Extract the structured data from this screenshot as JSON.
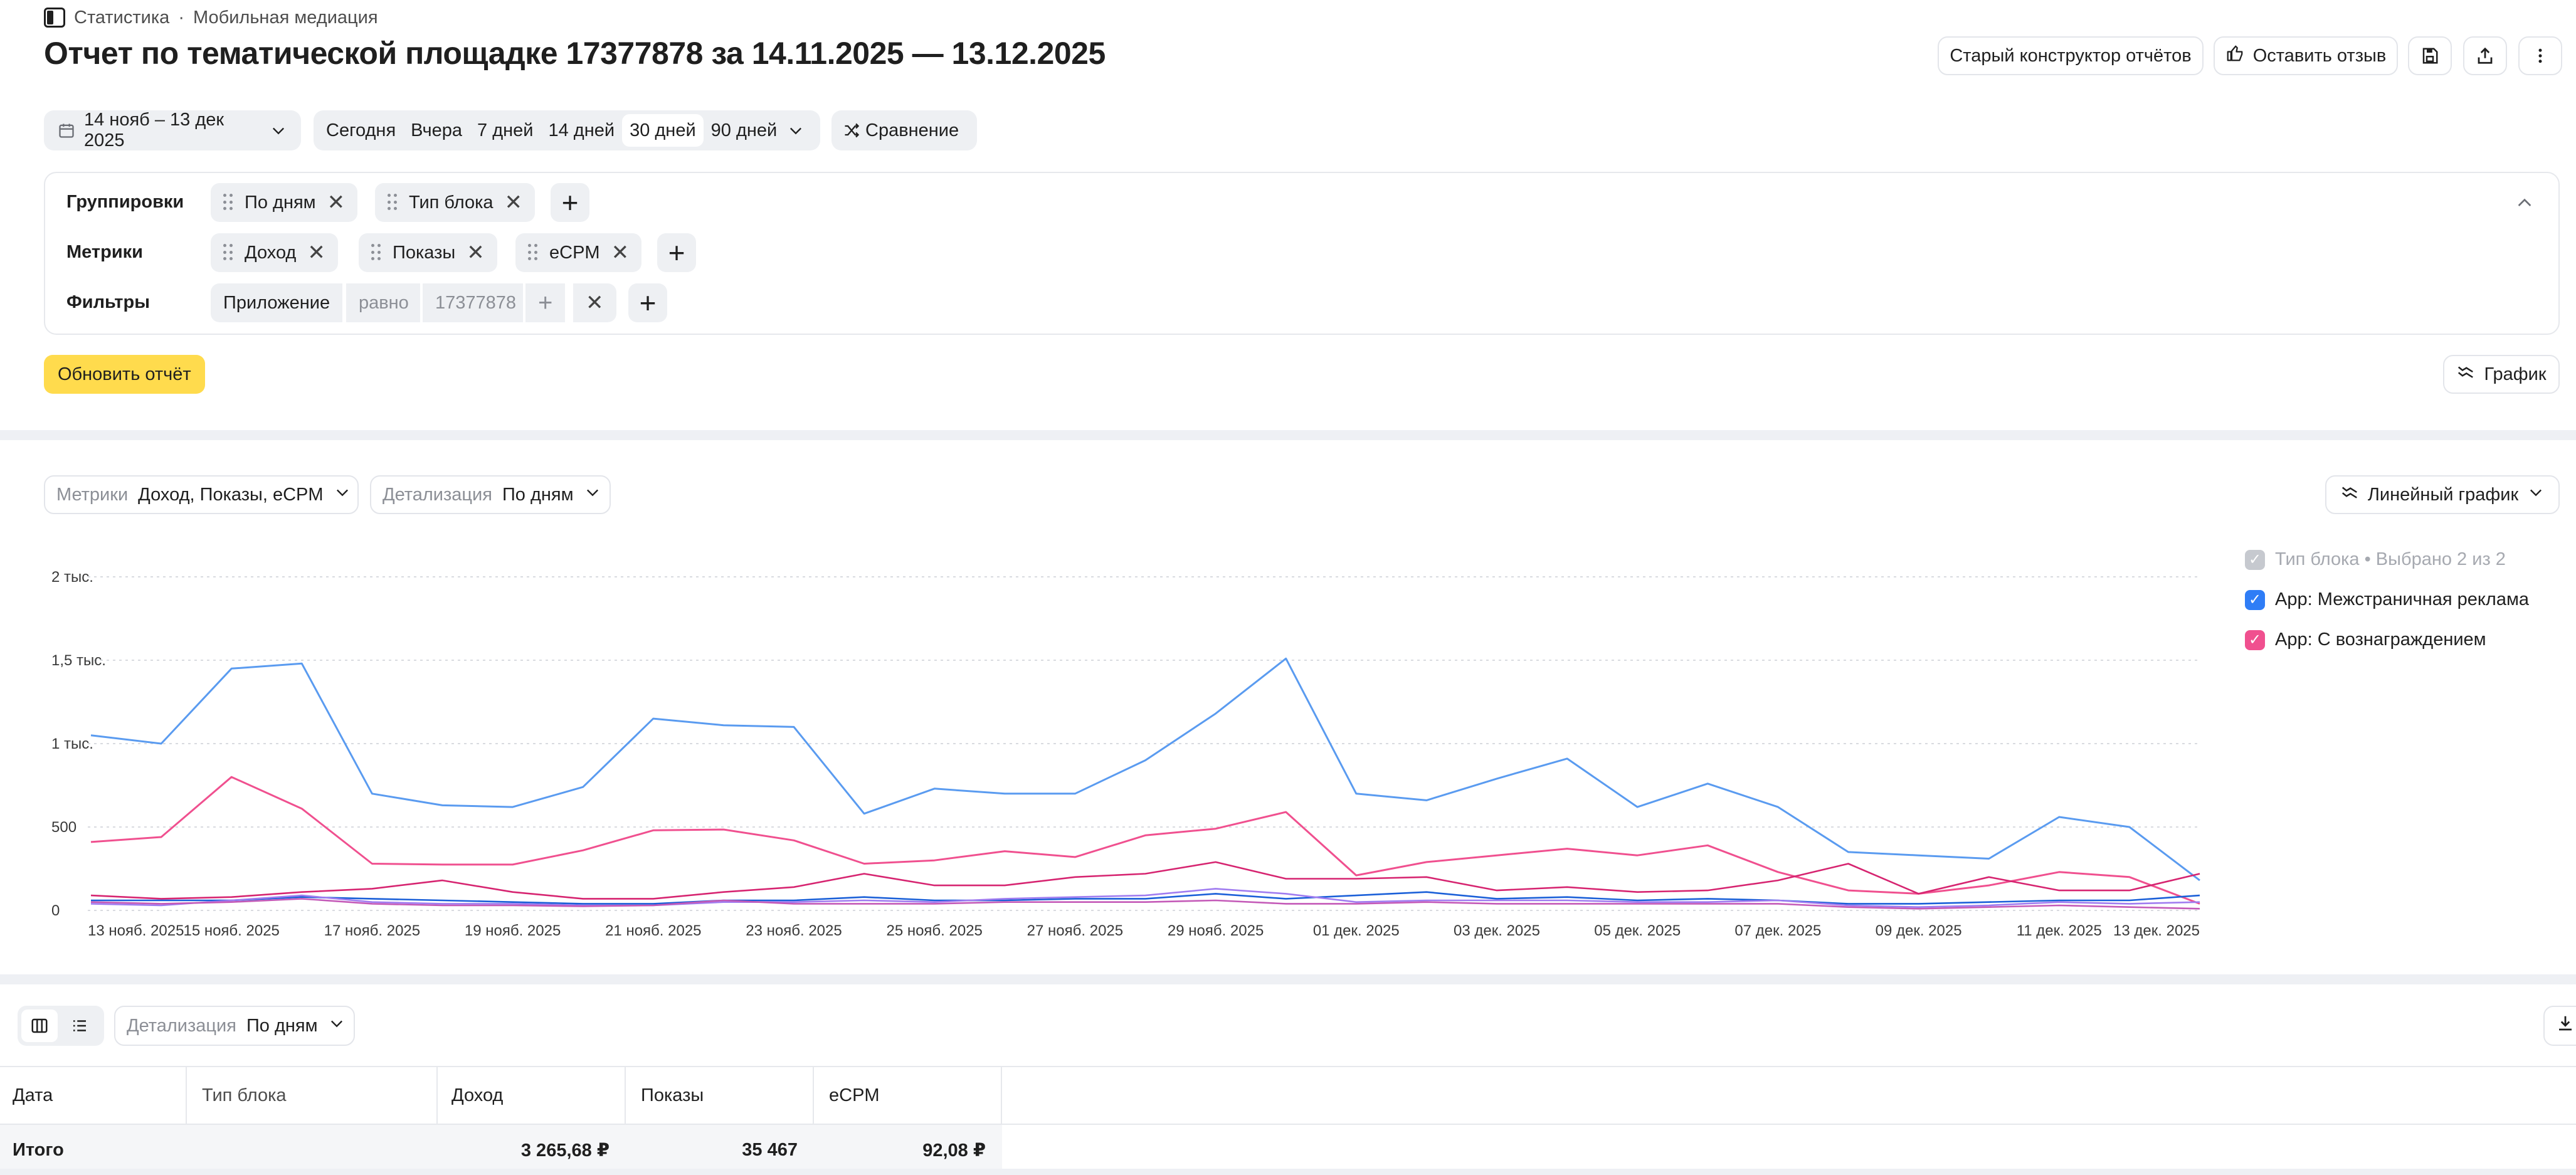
{
  "breadcrumb": {
    "part1": "Статистика",
    "sep": "·",
    "part2": "Мобильная медиация"
  },
  "page_title": "Отчет по тематической площадке 17377878 за 14.11.2025 — 13.12.2025",
  "header_actions": {
    "old_builder": "Старый конструктор отчётов",
    "feedback": "Оставить отзыв"
  },
  "date_range": "14 нояб – 13 дек 2025",
  "periods": [
    "Сегодня",
    "Вчера",
    "7 дней",
    "14 дней",
    "30 дней",
    "90 дней"
  ],
  "active_period": "30 дней",
  "comparison": "Сравнение",
  "groupings": {
    "label": "Группировки",
    "items": [
      "По дням",
      "Тип блока"
    ]
  },
  "metrics": {
    "label": "Метрики",
    "items": [
      "Доход",
      "Показы",
      "eCPM"
    ]
  },
  "filters": {
    "label": "Фильтры",
    "field": "Приложение",
    "op": "равно",
    "value": "17377878"
  },
  "update_button": "Обновить отчёт",
  "chart_toggle": "График",
  "chart_controls": {
    "metrics_label": "Метрики",
    "metrics_value": "Доход, Показы, eCPM",
    "detail_label": "Детализация",
    "detail_value": "По дням",
    "chart_type": "Линейный график"
  },
  "legend": {
    "header": "Тип блока • Выбрано 2 из 2",
    "items": [
      "App: Межстраничная реклама",
      "App: С вознаграждением"
    ]
  },
  "colors": {
    "blue": "#5a9bf0",
    "pink": "#f0508f",
    "purple": "#9a6ff0",
    "accent_yellow": "#ffdb4d",
    "dark_blue": "#1a5fd8",
    "dark_pink": "#d62470"
  },
  "chart_data": {
    "type": "line",
    "y_ticks": [
      "0",
      "500",
      "1 тыс.",
      "1,5 тыс.",
      "2 тыс."
    ],
    "ylim": [
      0,
      2000
    ],
    "x_tick_labels": [
      "13 нояб. 2025",
      "15 нояб. 2025",
      "17 нояб. 2025",
      "19 нояб. 2025",
      "21 нояб. 2025",
      "23 нояб. 2025",
      "25 нояб. 2025",
      "27 нояб. 2025",
      "29 нояб. 2025",
      "01 дек. 2025",
      "03 дек. 2025",
      "05 дек. 2025",
      "07 дек. 2025",
      "09 дек. 2025",
      "11 дек. 2025",
      "13 дек. 2025"
    ],
    "x": [
      "13 нояб.",
      "14 нояб.",
      "15 нояб.",
      "16 нояб.",
      "17 нояб.",
      "18 нояб.",
      "19 нояб.",
      "20 нояб.",
      "21 нояб.",
      "22 нояб.",
      "23 нояб.",
      "24 нояб.",
      "25 нояб.",
      "26 нояб.",
      "27 нояб.",
      "28 нояб.",
      "29 нояб.",
      "30 нояб.",
      "01 дек.",
      "02 дек.",
      "03 дек.",
      "04 дек.",
      "05 дек.",
      "06 дек.",
      "07 дек.",
      "08 дек.",
      "09 дек.",
      "10 дек.",
      "11 дек.",
      "12 дек.",
      "13 дек."
    ],
    "series": [
      {
        "color": "#5a9bf0",
        "values": [
          1050,
          1000,
          1450,
          1480,
          700,
          630,
          620,
          740,
          1150,
          1110,
          1100,
          580,
          730,
          700,
          700,
          900,
          1180,
          1510,
          700,
          660,
          790,
          910,
          620,
          760,
          620,
          350,
          330,
          310,
          560,
          500,
          180
        ]
      },
      {
        "color": "#f0508f",
        "values": [
          410,
          440,
          800,
          610,
          280,
          275,
          275,
          360,
          480,
          485,
          420,
          280,
          300,
          355,
          320,
          450,
          490,
          590,
          210,
          290,
          330,
          370,
          330,
          390,
          230,
          120,
          100,
          150,
          230,
          200,
          40
        ]
      },
      {
        "color": "#d62470",
        "values": [
          90,
          70,
          80,
          110,
          130,
          180,
          110,
          70,
          70,
          110,
          140,
          220,
          150,
          150,
          200,
          220,
          290,
          190,
          190,
          200,
          120,
          140,
          110,
          120,
          180,
          280,
          100,
          200,
          120,
          120,
          220
        ]
      },
      {
        "color": "#1a5fd8",
        "values": [
          60,
          60,
          60,
          80,
          70,
          60,
          50,
          40,
          40,
          60,
          60,
          80,
          60,
          60,
          70,
          70,
          100,
          70,
          90,
          110,
          70,
          80,
          60,
          70,
          60,
          40,
          40,
          50,
          60,
          60,
          90
        ]
      },
      {
        "color": "#a07cf0",
        "values": [
          40,
          30,
          60,
          90,
          50,
          40,
          40,
          30,
          30,
          50,
          50,
          60,
          50,
          70,
          80,
          90,
          130,
          100,
          50,
          60,
          60,
          60,
          50,
          50,
          60,
          30,
          20,
          30,
          50,
          40,
          50
        ]
      },
      {
        "color": "#c45ab8",
        "values": [
          50,
          40,
          50,
          70,
          40,
          30,
          30,
          25,
          30,
          60,
          40,
          40,
          40,
          50,
          50,
          50,
          60,
          40,
          40,
          50,
          40,
          40,
          40,
          40,
          40,
          20,
          10,
          20,
          30,
          20,
          10
        ]
      }
    ]
  },
  "table_controls": {
    "detail_label": "Детализация",
    "detail_value": "По дням"
  },
  "table": {
    "columns": [
      "Дата",
      "Тип блока",
      "Доход",
      "Показы",
      "eCPM"
    ],
    "total": {
      "label": "Итого",
      "block": "",
      "revenue": "3 265,68 ₽",
      "impressions": "35 467",
      "ecpm": "92,08 ₽"
    }
  }
}
